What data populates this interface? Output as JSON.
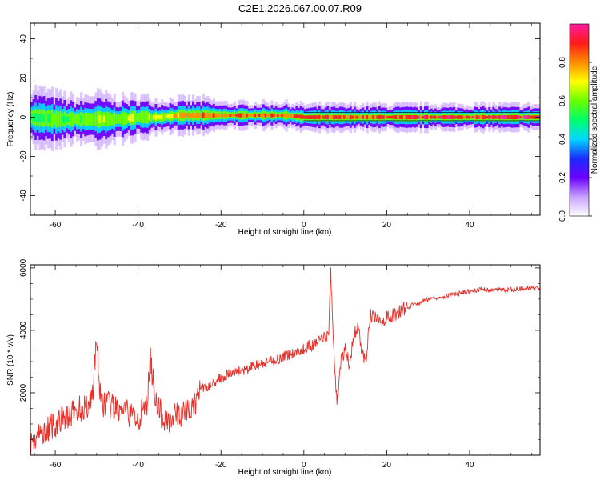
{
  "title": "C2E1.2026.067.00.07.R09",
  "chart_data": [
    {
      "type": "heatmap",
      "xlabel": "Height of straight line (km)",
      "ylabel": "Frequency (Hz)",
      "xlim": [
        -66,
        57
      ],
      "ylim": [
        -50,
        48
      ],
      "xticks": [
        -60,
        -40,
        -20,
        0,
        20,
        40
      ],
      "yticks": [
        -40,
        -20,
        0,
        20,
        40
      ],
      "colorbar": {
        "label": "Normalized spectral amplitude",
        "range": [
          0,
          1
        ],
        "ticks": [
          "0.0",
          "0.2",
          "0.4",
          "0.6",
          "0.8"
        ],
        "tick_values": [
          0.0,
          0.2,
          0.4,
          0.6,
          0.8
        ],
        "colors": [
          "#ffffff",
          "#c8a0ff",
          "#6a00ff",
          "#1a2cff",
          "#00d8ff",
          "#00ff6a",
          "#6aff00",
          "#ffff00",
          "#ff8c00",
          "#ff1a1a",
          "#ff1aa0"
        ]
      },
      "band": [
        {
          "x": -66,
          "center": 0,
          "halfwidth": 7,
          "amp": 0.55
        },
        {
          "x": -60,
          "center": -1,
          "halfwidth": 6,
          "amp": 0.6
        },
        {
          "x": -55,
          "center": -1,
          "halfwidth": 5,
          "amp": 0.62
        },
        {
          "x": -50,
          "center": -1,
          "halfwidth": 6,
          "amp": 0.7
        },
        {
          "x": -45,
          "center": -1,
          "halfwidth": 5,
          "amp": 0.65
        },
        {
          "x": -40,
          "center": 0,
          "halfwidth": 5,
          "amp": 0.68
        },
        {
          "x": -35,
          "center": 0,
          "halfwidth": 4,
          "amp": 0.7
        },
        {
          "x": -30,
          "center": 1,
          "halfwidth": 4,
          "amp": 0.82
        },
        {
          "x": -25,
          "center": 1,
          "halfwidth": 4,
          "amp": 0.85
        },
        {
          "x": -20,
          "center": 1,
          "halfwidth": 3,
          "amp": 0.88
        },
        {
          "x": -15,
          "center": 1,
          "halfwidth": 3,
          "amp": 0.9
        },
        {
          "x": -10,
          "center": 1,
          "halfwidth": 3,
          "amp": 0.92
        },
        {
          "x": -5,
          "center": 1,
          "halfwidth": 3,
          "amp": 0.92
        },
        {
          "x": 0,
          "center": 0,
          "halfwidth": 3,
          "amp": 0.95
        },
        {
          "x": 10,
          "center": 0,
          "halfwidth": 3,
          "amp": 0.95
        },
        {
          "x": 20,
          "center": 0,
          "halfwidth": 3,
          "amp": 0.98
        },
        {
          "x": 30,
          "center": 0,
          "halfwidth": 3,
          "amp": 0.98
        },
        {
          "x": 40,
          "center": 0,
          "halfwidth": 3,
          "amp": 0.98
        },
        {
          "x": 50,
          "center": 0,
          "halfwidth": 3,
          "amp": 0.98
        },
        {
          "x": 57,
          "center": 0,
          "halfwidth": 3,
          "amp": 0.98
        }
      ]
    },
    {
      "type": "line",
      "xlabel": "Height of straight line (km)",
      "ylabel": "SNR (10 * v/v)",
      "xlim": [
        -66,
        57
      ],
      "ylim": [
        0,
        6100
      ],
      "xticks": [
        -60,
        -40,
        -20,
        0,
        20,
        40
      ],
      "yticks": [
        2000,
        4000,
        6000
      ],
      "color": "#e8302a",
      "series": [
        {
          "name": "SNR",
          "x": [
            -66,
            -64,
            -62,
            -60,
            -58,
            -56,
            -54,
            -52,
            -51,
            -50,
            -49,
            -48,
            -46,
            -44,
            -42,
            -40,
            -38,
            -37,
            -36,
            -35,
            -34,
            -32,
            -30,
            -28,
            -26,
            -25,
            -24,
            -22,
            -20,
            -18,
            -16,
            -14,
            -12,
            -10,
            -8,
            -6,
            -4,
            -2,
            0,
            1,
            2,
            3,
            4,
            5,
            6,
            6.5,
            7,
            8,
            9,
            10,
            11,
            12,
            13,
            14,
            15,
            16,
            17,
            18,
            19,
            20,
            22,
            24,
            25,
            26,
            28,
            30,
            34,
            38,
            42,
            46,
            50,
            54,
            57
          ],
          "y": [
            400,
            600,
            800,
            1000,
            1200,
            1300,
            1500,
            1600,
            2000,
            3700,
            1600,
            1700,
            1500,
            1400,
            1300,
            1200,
            1500,
            3100,
            2000,
            1500,
            1100,
            1200,
            1300,
            1400,
            1700,
            2200,
            2100,
            2300,
            2500,
            2600,
            2700,
            2700,
            2900,
            2900,
            3000,
            3100,
            3200,
            3300,
            3400,
            3500,
            3500,
            3600,
            3700,
            3800,
            3900,
            6000,
            3900,
            1700,
            3000,
            3400,
            2900,
            3800,
            4100,
            3400,
            2900,
            4500,
            4400,
            4300,
            4300,
            4400,
            4500,
            4700,
            4700,
            4800,
            4900,
            5000,
            5100,
            5200,
            5300,
            5300,
            5300,
            5350,
            5350
          ]
        }
      ]
    }
  ]
}
